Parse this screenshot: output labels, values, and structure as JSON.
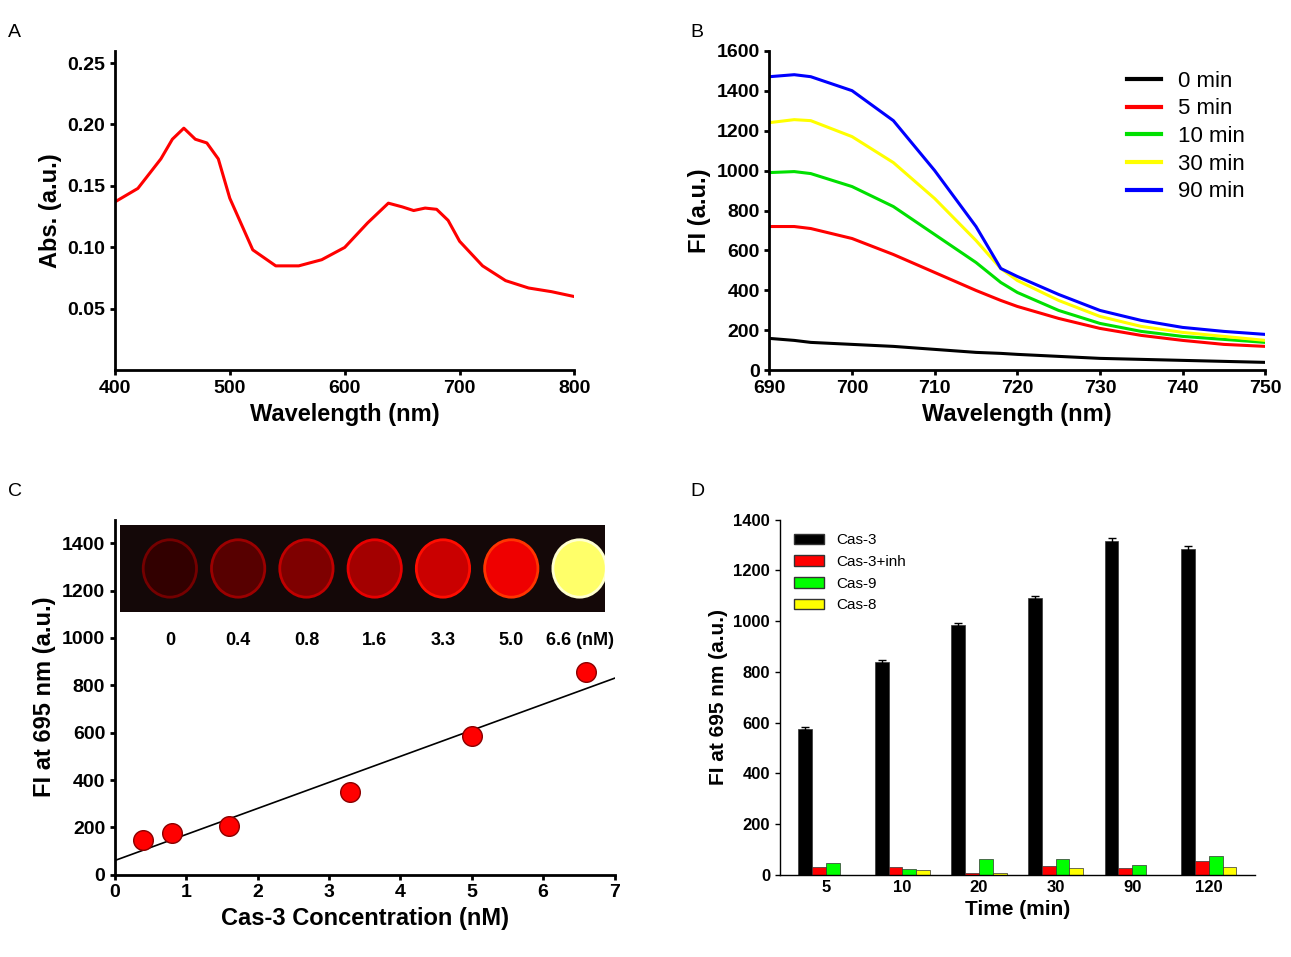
{
  "chart_data": [
    {
      "title": "A",
      "type": "line",
      "x_label": "Wavelength (nm)",
      "y_label": "Abs. (a.u.)",
      "x": [
        400,
        420,
        440,
        450,
        460,
        470,
        480,
        490,
        500,
        520,
        540,
        560,
        580,
        600,
        620,
        638,
        650,
        660,
        670,
        680,
        690,
        700,
        720,
        740,
        760,
        780,
        800
      ],
      "series": [
        {
          "color": "#ff0000",
          "values": [
            0.137,
            0.148,
            0.172,
            0.188,
            0.197,
            0.188,
            0.185,
            0.172,
            0.14,
            0.098,
            0.085,
            0.085,
            0.09,
            0.1,
            0.12,
            0.136,
            0.133,
            0.13,
            0.132,
            0.131,
            0.122,
            0.105,
            0.085,
            0.073,
            0.067,
            0.064,
            0.06
          ]
        }
      ],
      "xlim": [
        400,
        800
      ],
      "xticks": [
        400,
        500,
        600,
        700,
        800
      ],
      "ylim": [
        0.0,
        0.26
      ],
      "yticks": [
        0.05,
        {
          "value": 0.1,
          "label": "0.10"
        },
        0.15,
        {
          "value": 0.2,
          "label": "0.20"
        },
        0.25
      ]
    },
    {
      "title": "B",
      "type": "line",
      "x_label": "Wavelength (nm)",
      "y_label": "FI (a.u.)",
      "x": [
        690,
        693,
        695,
        700,
        705,
        710,
        715,
        718,
        720,
        725,
        730,
        735,
        740,
        745,
        750
      ],
      "series": [
        {
          "name": "0 min",
          "color": "#000000",
          "values": [
            160,
            150,
            140,
            130,
            120,
            105,
            90,
            85,
            80,
            70,
            60,
            55,
            50,
            45,
            40
          ]
        },
        {
          "name": "5 min",
          "color": "#ff0000",
          "values": [
            720,
            720,
            710,
            660,
            580,
            490,
            400,
            350,
            320,
            260,
            210,
            175,
            150,
            130,
            120
          ]
        },
        {
          "name": "10 min",
          "color": "#00e000",
          "values": [
            990,
            995,
            985,
            920,
            820,
            680,
            540,
            440,
            390,
            300,
            235,
            195,
            170,
            155,
            140
          ]
        },
        {
          "name": "30 min",
          "color": "#ffff00",
          "values": [
            1240,
            1255,
            1250,
            1170,
            1040,
            860,
            650,
            510,
            450,
            350,
            270,
            220,
            190,
            170,
            150
          ]
        },
        {
          "name": "90 min",
          "color": "#0000ff",
          "values": [
            1470,
            1480,
            1470,
            1400,
            1250,
            1000,
            720,
            510,
            470,
            380,
            300,
            250,
            215,
            195,
            180
          ]
        }
      ],
      "legend": "upper right",
      "xlim": [
        690,
        750
      ],
      "xticks": [
        690,
        700,
        710,
        720,
        730,
        740,
        750
      ],
      "ylim": [
        0,
        1600
      ],
      "yticks": [
        0,
        200,
        400,
        600,
        800,
        1000,
        1200,
        1400,
        1600
      ]
    },
    {
      "title": "C",
      "type": "scatter",
      "x_label": "Cas-3 Concentration (nM)",
      "y_label": "FI at 695 nm (a.u.)",
      "series": [
        {
          "type": "scatter",
          "marker": "o",
          "color": "#ff0000",
          "x": [
            0.4,
            0.8,
            1.6,
            3.3,
            5.0,
            6.6
          ],
          "values": [
            145,
            175,
            205,
            350,
            585,
            855
          ]
        },
        {
          "type": "line",
          "color": "#000000",
          "x": [
            0,
            7
          ],
          "values": [
            60,
            830
          ]
        }
      ],
      "inset_labels": [
        "0",
        "0.4",
        "0.8",
        "1.6",
        "3.3",
        "5.0",
        "6.6 (nM)"
      ],
      "xlim": [
        0,
        7
      ],
      "xticks": [
        0,
        1,
        2,
        3,
        4,
        5,
        6,
        7
      ],
      "ylim": [
        0,
        1500
      ],
      "yticks": [
        0,
        200,
        400,
        600,
        800,
        1000,
        1200,
        1400
      ]
    },
    {
      "title": "D",
      "type": "bar",
      "x_label": "Time (min)",
      "y_label": "FI at 695 nm (a.u.)",
      "categories": [
        "5",
        "10",
        "20",
        "30",
        "90",
        "120"
      ],
      "series": [
        {
          "name": "Cas-3",
          "color": "#000000",
          "values": [
            575,
            840,
            985,
            1090,
            1315,
            1285
          ],
          "errors": [
            6,
            8,
            8,
            10,
            12,
            10
          ]
        },
        {
          "name": "Cas-3+inh",
          "color": "#ff0000",
          "values": [
            30,
            30,
            5,
            35,
            25,
            55
          ]
        },
        {
          "name": "Cas-9",
          "color": "#00ff00",
          "values": [
            45,
            22,
            60,
            60,
            38,
            72
          ]
        },
        {
          "name": "Cas-8",
          "color": "#ffff00",
          "values": [
            0,
            20,
            5,
            28,
            0,
            32
          ]
        }
      ],
      "legend": "upper left",
      "ylim": [
        0,
        1400
      ],
      "yticks": [
        0,
        200,
        400,
        600,
        800,
        1000,
        1200,
        1400
      ]
    }
  ]
}
